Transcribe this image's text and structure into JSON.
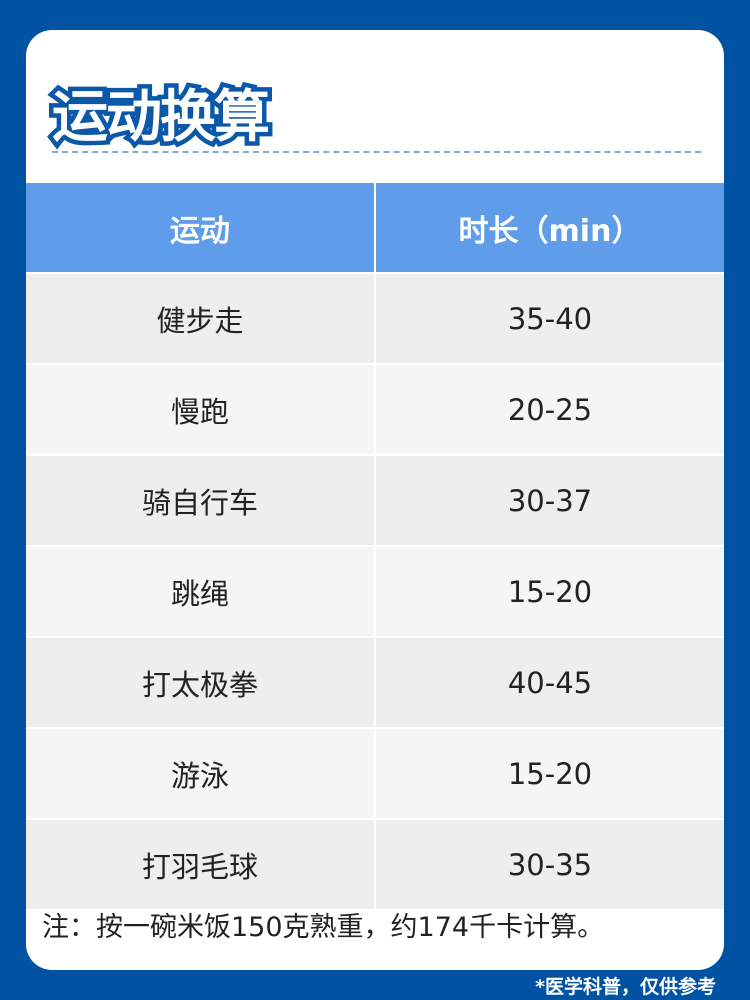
{
  "title": "运动换算",
  "table": {
    "headers": [
      "运动",
      "时长（min）"
    ],
    "rows": [
      {
        "sport": "健步走",
        "duration": "35-40"
      },
      {
        "sport": "慢跑",
        "duration": "20-25"
      },
      {
        "sport": "骑自行车",
        "duration": "30-37"
      },
      {
        "sport": "跳绳",
        "duration": "15-20"
      },
      {
        "sport": "打太极拳",
        "duration": "40-45"
      },
      {
        "sport": "游泳",
        "duration": "15-20"
      },
      {
        "sport": "打羽毛球",
        "duration": "30-35"
      }
    ]
  },
  "note": "注：按一碗米饭150克熟重，约174千卡计算。",
  "footer": "*医学科普，仅供参考",
  "colors": {
    "background": "#0052A3",
    "header": "#5F9DEB"
  }
}
